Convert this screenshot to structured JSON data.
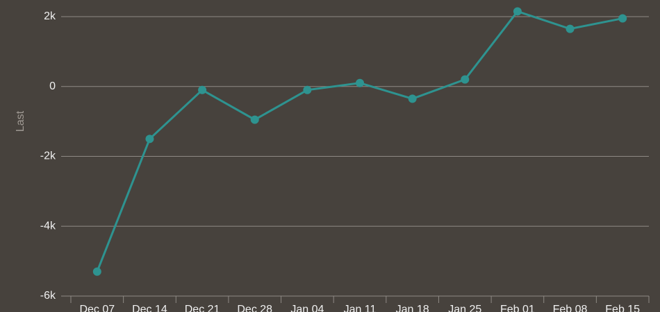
{
  "chart_data": {
    "type": "line",
    "y_label": "Last",
    "categories": [
      "Dec 07",
      "Dec 14",
      "Dec 21",
      "Dec 28",
      "Jan 04",
      "Jan 11",
      "Jan 18",
      "Jan 25",
      "Feb 01",
      "Feb 08",
      "Feb 15"
    ],
    "series": [
      {
        "name": "Last",
        "color": "#2e9390",
        "values": [
          -5300,
          -1500,
          -100,
          -950,
          -100,
          100,
          -350,
          200,
          2150,
          1650,
          1950
        ]
      }
    ],
    "ylim": [
      -6000,
      2000
    ],
    "yticks": [
      {
        "value": -6000,
        "label": "-6k"
      },
      {
        "value": -4000,
        "label": "-4k"
      },
      {
        "value": -2000,
        "label": "-2k"
      },
      0,
      {
        "value": 2000,
        "label": "2k"
      }
    ],
    "grid": true
  }
}
